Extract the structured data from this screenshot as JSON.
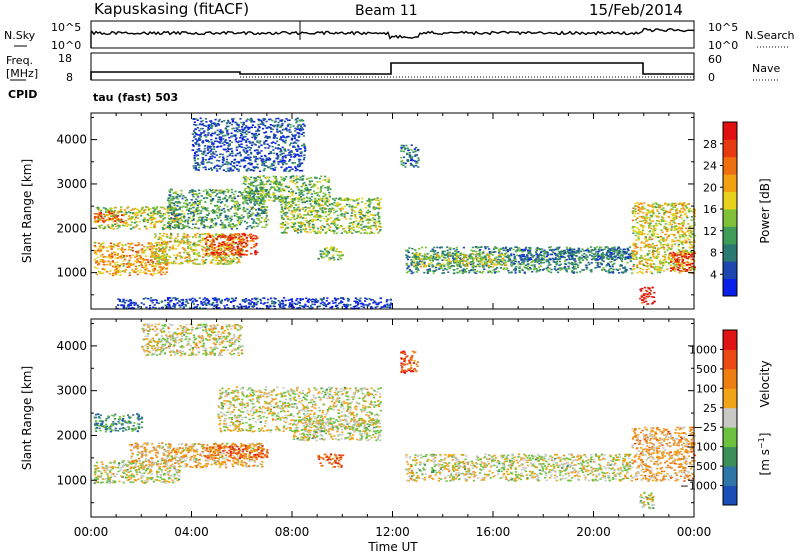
{
  "header": {
    "station": "Kapuskasing (fitACF)",
    "beam": "Beam 11",
    "date": "15/Feb/2014"
  },
  "top_panels": {
    "nsky": {
      "label": "N.Sky",
      "ticks": [
        "10^5",
        "10^0"
      ]
    },
    "nsearch": {
      "label": "N.Search",
      "ticks": [
        "10^5",
        "10^0"
      ]
    },
    "freq": {
      "label_line1": "Freq.",
      "label_line2": "[MHz]",
      "ticks": [
        "18",
        "8"
      ]
    },
    "nave": {
      "label": "Nave",
      "ticks": [
        "60",
        "0"
      ]
    },
    "cpid": {
      "label": "CPID",
      "value": "tau (fast) 503"
    }
  },
  "chart_data": [
    {
      "type": "heatmap",
      "panel": "power",
      "xlabel": "",
      "ylabel": "Slant Range [km]",
      "x_range_hours": [
        0,
        24
      ],
      "xticks": [
        "00:00",
        "04:00",
        "08:00",
        "12:00",
        "16:00",
        "20:00",
        "00:00"
      ],
      "ylim": [
        180,
        4600
      ],
      "yticks": [
        "1000",
        "2000",
        "3000",
        "4000"
      ],
      "colorbar": {
        "label": "Power [dB]",
        "ticks": [
          "4",
          "8",
          "12",
          "16",
          "20",
          "24",
          "28"
        ],
        "colors": [
          "#0a1fe8",
          "#1c47b0",
          "#2a7a73",
          "#3e9d57",
          "#7fc23a",
          "#e8d21e",
          "#f2a113",
          "#ee6e10",
          "#e83a10",
          "#e01010"
        ]
      },
      "regions": [
        {
          "t0": 0.1,
          "t1": 3.0,
          "r0": 950,
          "r1": 1700,
          "level": 0.65
        },
        {
          "t0": 2.5,
          "t1": 6.0,
          "r0": 1200,
          "r1": 1900,
          "level": 0.55
        },
        {
          "t0": 4.5,
          "t1": 6.6,
          "r0": 1400,
          "r1": 1900,
          "level": 0.85
        },
        {
          "t0": 0.1,
          "t1": 3.5,
          "r0": 2000,
          "r1": 2500,
          "level": 0.5
        },
        {
          "t0": 0.1,
          "t1": 1.2,
          "r0": 2150,
          "r1": 2400,
          "level": 0.8
        },
        {
          "t0": 3.0,
          "t1": 7.0,
          "r0": 2000,
          "r1": 2900,
          "level": 0.35
        },
        {
          "t0": 6.0,
          "t1": 9.5,
          "r0": 2600,
          "r1": 3200,
          "level": 0.4
        },
        {
          "t0": 7.5,
          "t1": 11.5,
          "r0": 1900,
          "r1": 2700,
          "level": 0.45
        },
        {
          "t0": 9.0,
          "t1": 10.0,
          "r0": 1300,
          "r1": 1600,
          "level": 0.4
        },
        {
          "t0": 12.5,
          "t1": 21.5,
          "r0": 1000,
          "r1": 1600,
          "level": 0.3
        },
        {
          "t0": 12.8,
          "t1": 16.5,
          "r0": 1150,
          "r1": 1450,
          "level": 0.5
        },
        {
          "t0": 17.0,
          "t1": 21.5,
          "r0": 1300,
          "r1": 1550,
          "level": 0.2
        },
        {
          "t0": 21.5,
          "t1": 24.0,
          "r0": 1000,
          "r1": 2600,
          "level": 0.55
        },
        {
          "t0": 23.0,
          "t1": 24.0,
          "r0": 1050,
          "r1": 1500,
          "level": 0.9
        },
        {
          "t0": 21.8,
          "t1": 22.4,
          "r0": 300,
          "r1": 700,
          "level": 0.95
        },
        {
          "t0": 4.0,
          "t1": 8.5,
          "r0": 3300,
          "r1": 4500,
          "level": 0.15
        },
        {
          "t0": 12.3,
          "t1": 13.0,
          "r0": 3400,
          "r1": 3900,
          "level": 0.25
        },
        {
          "t0": 1.0,
          "t1": 12.0,
          "r0": 200,
          "r1": 450,
          "level": 0.1
        }
      ]
    },
    {
      "type": "heatmap",
      "panel": "velocity",
      "xlabel": "Time UT",
      "ylabel": "Slant Range [km]",
      "x_range_hours": [
        0,
        24
      ],
      "xticks": [
        "00:00",
        "04:00",
        "08:00",
        "12:00",
        "16:00",
        "20:00",
        "00:00"
      ],
      "ylim": [
        180,
        4600
      ],
      "yticks": [
        "1000",
        "2000",
        "3000",
        "4000"
      ],
      "colorbar": {
        "label": "Velocity",
        "ticks": [
          "1000",
          "500",
          "100",
          "25",
          "−25",
          "−100",
          "−500",
          "−1000"
        ],
        "colors": [
          "#1a4fb8",
          "#2f75a8",
          "#3d8f5a",
          "#6cc23e",
          "#c8c8c4",
          "#f0a418",
          "#ee7d12",
          "#ea4a12",
          "#e01414"
        ]
      },
      "regions": [
        {
          "t0": 0.1,
          "t1": 3.5,
          "r0": 950,
          "r1": 1450,
          "level": 0.5
        },
        {
          "t0": 1.5,
          "t1": 6.8,
          "r0": 1300,
          "r1": 1850,
          "level": 0.6
        },
        {
          "t0": 4.5,
          "t1": 7.0,
          "r0": 1500,
          "r1": 1800,
          "level": 0.78
        },
        {
          "t0": 0.1,
          "t1": 2.0,
          "r0": 2100,
          "r1": 2500,
          "level": 0.25
        },
        {
          "t0": 5.0,
          "t1": 11.5,
          "r0": 2100,
          "r1": 3100,
          "level": 0.5
        },
        {
          "t0": 8.0,
          "t1": 11.5,
          "r0": 1900,
          "r1": 2400,
          "level": 0.5
        },
        {
          "t0": 9.0,
          "t1": 10.0,
          "r0": 1300,
          "r1": 1600,
          "level": 0.78
        },
        {
          "t0": 12.5,
          "t1": 21.5,
          "r0": 1000,
          "r1": 1600,
          "level": 0.5
        },
        {
          "t0": 21.5,
          "t1": 24.0,
          "r0": 1000,
          "r1": 2200,
          "level": 0.62
        },
        {
          "t0": 12.3,
          "t1": 13.0,
          "r0": 3400,
          "r1": 3900,
          "level": 0.82
        },
        {
          "t0": 21.8,
          "t1": 22.4,
          "r0": 350,
          "r1": 750,
          "level": 0.5
        },
        {
          "t0": 2.0,
          "t1": 6.0,
          "r0": 3800,
          "r1": 4500,
          "level": 0.5
        }
      ]
    }
  ],
  "colors": {
    "axis": "#000000",
    "background": "#ffffff"
  }
}
